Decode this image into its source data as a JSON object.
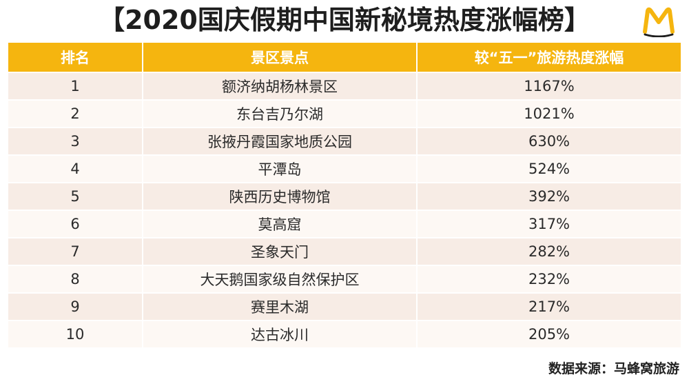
{
  "title": "【2020国庆假期中国新秘境热度涨幅榜】",
  "logo": {
    "icon": "mafengwo-m-logo-icon",
    "color": "#f5b50f"
  },
  "chart_data": {
    "type": "table",
    "headers": [
      "排名",
      "景区景点",
      "较“五一”旅游热度涨幅"
    ],
    "rows": [
      {
        "rank": "1",
        "name": "额济纳胡杨林景区",
        "increase": "1167%"
      },
      {
        "rank": "2",
        "name": "东台吉乃尔湖",
        "increase": "1021%"
      },
      {
        "rank": "3",
        "name": "张掖丹霞国家地质公园",
        "increase": "630%"
      },
      {
        "rank": "4",
        "name": "平潭岛",
        "increase": "524%"
      },
      {
        "rank": "5",
        "name": "陕西历史博物馆",
        "increase": "392%"
      },
      {
        "rank": "6",
        "name": "莫高窟",
        "increase": "317%"
      },
      {
        "rank": "7",
        "name": "圣象天门",
        "increase": "282%"
      },
      {
        "rank": "8",
        "name": "大天鹅国家级自然保护区",
        "increase": "232%"
      },
      {
        "rank": "9",
        "name": "赛里木湖",
        "increase": "217%"
      },
      {
        "rank": "10",
        "name": "达古冰川",
        "increase": "205%"
      }
    ]
  },
  "source": "数据来源：马蜂窝旅游",
  "colors": {
    "header": "#f5b50f",
    "row_odd": "#f7ece5",
    "row_even": "#fdf8f4"
  }
}
